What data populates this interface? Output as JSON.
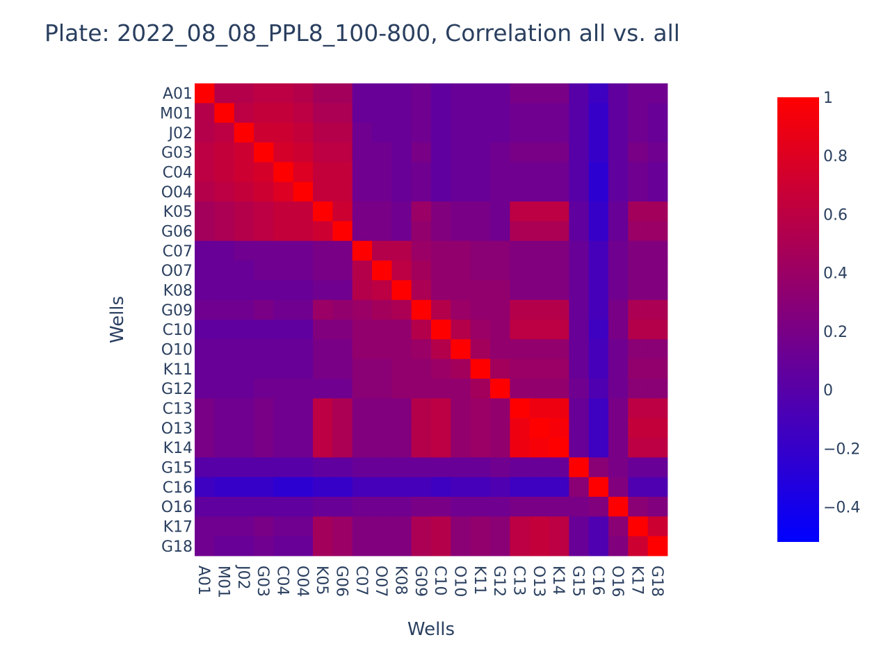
{
  "chart_data": {
    "type": "heatmap",
    "title": "Plate: 2022_08_08_PPL8_100-800, Correlation all vs. all",
    "xlabel": "Wells",
    "ylabel": "Wells",
    "tick_labels": [
      "A01",
      "M01",
      "J02",
      "G03",
      "C04",
      "O04",
      "K05",
      "G06",
      "C07",
      "O07",
      "K08",
      "G09",
      "C10",
      "O10",
      "K11",
      "G12",
      "C13",
      "O13",
      "K14",
      "G15",
      "C16",
      "O16",
      "K17",
      "G18"
    ],
    "x": [
      "A01",
      "M01",
      "J02",
      "G03",
      "C04",
      "O04",
      "K05",
      "G06",
      "C07",
      "O07",
      "K08",
      "G09",
      "C10",
      "O10",
      "K11",
      "G12",
      "C13",
      "O13",
      "K14",
      "G15",
      "C16",
      "O16",
      "K17",
      "G18"
    ],
    "y": [
      "A01",
      "M01",
      "J02",
      "G03",
      "C04",
      "O04",
      "K05",
      "G06",
      "C07",
      "O07",
      "K08",
      "G09",
      "C10",
      "O10",
      "K11",
      "G12",
      "C13",
      "O13",
      "K14",
      "G15",
      "C16",
      "O16",
      "K17",
      "G18"
    ],
    "z": [
      [
        1.0,
        0.55,
        0.55,
        0.6,
        0.6,
        0.55,
        0.45,
        0.45,
        0.1,
        0.1,
        0.1,
        0.15,
        0.05,
        0.1,
        0.1,
        0.1,
        0.2,
        0.2,
        0.2,
        0.0,
        -0.15,
        0.05,
        0.15,
        0.15
      ],
      [
        0.55,
        1.0,
        0.6,
        0.65,
        0.65,
        0.6,
        0.5,
        0.5,
        0.1,
        0.1,
        0.1,
        0.15,
        0.05,
        0.1,
        0.1,
        0.1,
        0.15,
        0.15,
        0.15,
        0.0,
        -0.2,
        0.05,
        0.15,
        0.1
      ],
      [
        0.55,
        0.6,
        1.0,
        0.7,
        0.7,
        0.65,
        0.55,
        0.55,
        0.15,
        0.1,
        0.1,
        0.15,
        0.05,
        0.1,
        0.1,
        0.1,
        0.15,
        0.15,
        0.15,
        0.0,
        -0.2,
        0.05,
        0.15,
        0.1
      ],
      [
        0.6,
        0.65,
        0.7,
        1.0,
        0.75,
        0.7,
        0.6,
        0.6,
        0.15,
        0.15,
        0.1,
        0.2,
        0.05,
        0.1,
        0.1,
        0.15,
        0.2,
        0.2,
        0.2,
        0.0,
        -0.2,
        0.05,
        0.2,
        0.15
      ],
      [
        0.6,
        0.65,
        0.7,
        0.75,
        1.0,
        0.8,
        0.65,
        0.65,
        0.15,
        0.15,
        0.1,
        0.15,
        0.05,
        0.1,
        0.1,
        0.15,
        0.15,
        0.15,
        0.15,
        0.0,
        -0.25,
        0.05,
        0.15,
        0.1
      ],
      [
        0.55,
        0.6,
        0.65,
        0.7,
        0.8,
        1.0,
        0.65,
        0.65,
        0.15,
        0.15,
        0.1,
        0.15,
        0.05,
        0.1,
        0.1,
        0.15,
        0.15,
        0.15,
        0.15,
        0.0,
        -0.25,
        0.05,
        0.15,
        0.1
      ],
      [
        0.45,
        0.5,
        0.55,
        0.6,
        0.65,
        0.65,
        1.0,
        0.7,
        0.2,
        0.2,
        0.15,
        0.4,
        0.25,
        0.2,
        0.2,
        0.15,
        0.6,
        0.6,
        0.6,
        0.05,
        -0.2,
        0.1,
        0.45,
        0.45
      ],
      [
        0.45,
        0.5,
        0.55,
        0.6,
        0.65,
        0.65,
        0.7,
        1.0,
        0.2,
        0.2,
        0.15,
        0.35,
        0.25,
        0.2,
        0.2,
        0.15,
        0.5,
        0.5,
        0.5,
        0.05,
        -0.2,
        0.1,
        0.4,
        0.4
      ],
      [
        0.1,
        0.1,
        0.15,
        0.15,
        0.15,
        0.15,
        0.2,
        0.2,
        1.0,
        0.55,
        0.55,
        0.4,
        0.35,
        0.35,
        0.3,
        0.3,
        0.25,
        0.25,
        0.25,
        0.1,
        -0.1,
        0.15,
        0.25,
        0.25
      ],
      [
        0.1,
        0.1,
        0.1,
        0.15,
        0.15,
        0.15,
        0.2,
        0.2,
        0.55,
        1.0,
        0.6,
        0.45,
        0.35,
        0.35,
        0.3,
        0.3,
        0.25,
        0.25,
        0.25,
        0.1,
        -0.1,
        0.15,
        0.25,
        0.25
      ],
      [
        0.1,
        0.1,
        0.1,
        0.1,
        0.1,
        0.1,
        0.15,
        0.15,
        0.55,
        0.6,
        1.0,
        0.5,
        0.35,
        0.35,
        0.35,
        0.35,
        0.25,
        0.25,
        0.25,
        0.1,
        -0.1,
        0.15,
        0.25,
        0.25
      ],
      [
        0.15,
        0.15,
        0.15,
        0.2,
        0.15,
        0.15,
        0.4,
        0.35,
        0.4,
        0.45,
        0.5,
        1.0,
        0.55,
        0.4,
        0.35,
        0.35,
        0.55,
        0.55,
        0.55,
        0.1,
        -0.1,
        0.2,
        0.5,
        0.5
      ],
      [
        0.05,
        0.05,
        0.05,
        0.05,
        0.05,
        0.05,
        0.25,
        0.25,
        0.35,
        0.35,
        0.35,
        0.55,
        1.0,
        0.55,
        0.4,
        0.35,
        0.6,
        0.6,
        0.6,
        0.1,
        -0.15,
        0.2,
        0.55,
        0.55
      ],
      [
        0.1,
        0.1,
        0.1,
        0.1,
        0.1,
        0.1,
        0.2,
        0.2,
        0.35,
        0.35,
        0.35,
        0.4,
        0.55,
        1.0,
        0.45,
        0.35,
        0.35,
        0.35,
        0.35,
        0.1,
        -0.1,
        0.15,
        0.3,
        0.3
      ],
      [
        0.1,
        0.1,
        0.1,
        0.1,
        0.1,
        0.1,
        0.2,
        0.2,
        0.3,
        0.3,
        0.35,
        0.35,
        0.4,
        0.45,
        1.0,
        0.45,
        0.4,
        0.4,
        0.4,
        0.1,
        -0.1,
        0.15,
        0.35,
        0.35
      ],
      [
        0.1,
        0.1,
        0.1,
        0.15,
        0.15,
        0.15,
        0.15,
        0.15,
        0.3,
        0.3,
        0.35,
        0.35,
        0.35,
        0.35,
        0.45,
        1.0,
        0.35,
        0.35,
        0.35,
        0.15,
        -0.05,
        0.15,
        0.3,
        0.3
      ],
      [
        0.2,
        0.15,
        0.15,
        0.2,
        0.15,
        0.15,
        0.6,
        0.5,
        0.25,
        0.25,
        0.25,
        0.55,
        0.6,
        0.35,
        0.4,
        0.35,
        1.0,
        0.9,
        0.9,
        0.1,
        -0.15,
        0.2,
        0.6,
        0.6
      ],
      [
        0.2,
        0.15,
        0.15,
        0.2,
        0.15,
        0.15,
        0.6,
        0.5,
        0.25,
        0.25,
        0.25,
        0.55,
        0.6,
        0.35,
        0.4,
        0.35,
        0.9,
        1.0,
        0.95,
        0.1,
        -0.15,
        0.2,
        0.65,
        0.65
      ],
      [
        0.2,
        0.15,
        0.15,
        0.2,
        0.15,
        0.15,
        0.6,
        0.5,
        0.25,
        0.25,
        0.25,
        0.55,
        0.6,
        0.35,
        0.4,
        0.35,
        0.9,
        0.95,
        1.0,
        0.1,
        -0.15,
        0.2,
        0.6,
        0.6
      ],
      [
        0.0,
        0.0,
        0.0,
        0.0,
        0.0,
        0.0,
        0.05,
        0.05,
        0.1,
        0.1,
        0.1,
        0.1,
        0.1,
        0.1,
        0.1,
        0.15,
        0.1,
        0.1,
        0.1,
        1.0,
        0.3,
        0.2,
        0.1,
        0.1
      ],
      [
        -0.15,
        -0.2,
        -0.2,
        -0.2,
        -0.25,
        -0.25,
        -0.2,
        -0.2,
        -0.1,
        -0.1,
        -0.1,
        -0.1,
        -0.15,
        -0.1,
        -0.1,
        -0.05,
        -0.15,
        -0.15,
        -0.15,
        0.3,
        1.0,
        0.25,
        -0.05,
        -0.05
      ],
      [
        0.05,
        0.05,
        0.05,
        0.05,
        0.05,
        0.05,
        0.1,
        0.1,
        0.15,
        0.15,
        0.15,
        0.2,
        0.2,
        0.15,
        0.15,
        0.15,
        0.2,
        0.2,
        0.2,
        0.2,
        0.25,
        1.0,
        0.3,
        0.25
      ],
      [
        0.15,
        0.15,
        0.15,
        0.2,
        0.15,
        0.15,
        0.45,
        0.4,
        0.25,
        0.25,
        0.25,
        0.5,
        0.55,
        0.3,
        0.35,
        0.3,
        0.6,
        0.65,
        0.6,
        0.1,
        -0.05,
        0.3,
        1.0,
        0.7
      ],
      [
        0.15,
        0.1,
        0.1,
        0.15,
        0.1,
        0.1,
        0.45,
        0.4,
        0.25,
        0.25,
        0.25,
        0.5,
        0.55,
        0.3,
        0.35,
        0.3,
        0.6,
        0.65,
        0.6,
        0.1,
        -0.05,
        0.25,
        0.7,
        1.0
      ]
    ],
    "zmin": -0.52,
    "zmax": 1,
    "colorscale": [
      [
        0,
        "#0000ff"
      ],
      [
        1,
        "#ff0000"
      ]
    ],
    "colorbar": {
      "tick_values": [
        1,
        0.8,
        0.6,
        0.4,
        0.2,
        0,
        -0.2,
        -0.4
      ],
      "tick_labels": [
        "1",
        "0.8",
        "0.6",
        "0.4",
        "0.2",
        "0",
        "−0.2",
        "−0.4"
      ]
    },
    "x_tick_orientation": "rotated-90",
    "legend": "colorbar-right",
    "grid": false
  }
}
